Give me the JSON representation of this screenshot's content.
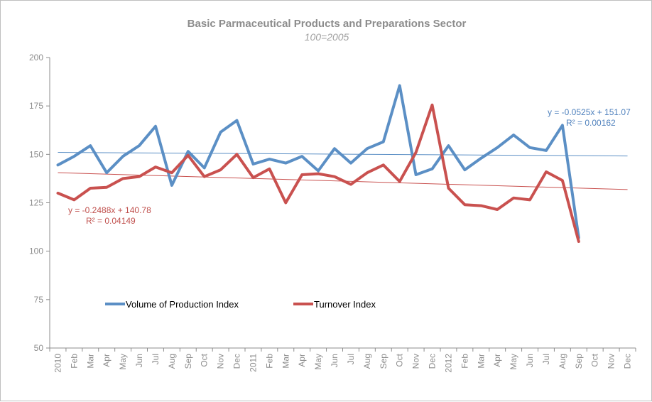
{
  "chart_data": {
    "type": "line",
    "title": "Basic Parmaceutical Products and Preparations Sector",
    "subtitle": "100=2005",
    "xlabel": "",
    "ylabel": "",
    "ylim": [
      50,
      200
    ],
    "yticks": [
      50,
      75,
      100,
      125,
      150,
      175,
      200
    ],
    "grid": false,
    "legend": "middle-left",
    "categories": [
      "2010",
      "Feb",
      "Mar",
      "Apr",
      "May",
      "Jun",
      "Jul",
      "Aug",
      "Sep",
      "Oct",
      "Nov",
      "Dec",
      "2011",
      "Feb",
      "Mar",
      "Apr",
      "May",
      "Jun",
      "Jul",
      "Aug",
      "Sep",
      "Oct",
      "Nov",
      "Dec",
      "2012",
      "Feb",
      "Mar",
      "Apr",
      "May",
      "Jun",
      "Jul",
      "Aug",
      "Sep",
      "Oct",
      "Nov",
      "Dec"
    ],
    "series": [
      {
        "name": "Volume of Production Index",
        "color": "#5b8fc5",
        "values": [
          144.5,
          149,
          154.5,
          140.5,
          149,
          154.5,
          164.5,
          134,
          151.5,
          143,
          161.5,
          167.5,
          145,
          147.5,
          145.5,
          149,
          141.5,
          153,
          145.5,
          153,
          156.5,
          185.5,
          139.5,
          142.5,
          154.5,
          142,
          148,
          153.5,
          160,
          153.5,
          152,
          165,
          107,
          null,
          null,
          null
        ],
        "trendline": {
          "equation": "y = -0.0525x + 151.07",
          "r2": "R² = 0.00162",
          "slope": -0.0525,
          "intercept": 151.07
        }
      },
      {
        "name": "Turnover Index",
        "color": "#c9514f",
        "values": [
          130,
          126.5,
          132.5,
          133,
          137.5,
          138.5,
          143.5,
          140.5,
          149.5,
          138.5,
          142,
          150,
          138,
          142.5,
          125,
          139.5,
          140,
          138.5,
          134.5,
          140.5,
          144.5,
          136,
          151,
          175.5,
          132.5,
          124,
          123.5,
          121.5,
          127.5,
          126.5,
          141,
          136.5,
          105,
          null,
          null,
          null
        ],
        "trendline": {
          "equation": "y = -0.2488x + 140.78",
          "r2": "R² = 0.04149",
          "slope": -0.2488,
          "intercept": 140.78
        }
      }
    ]
  }
}
